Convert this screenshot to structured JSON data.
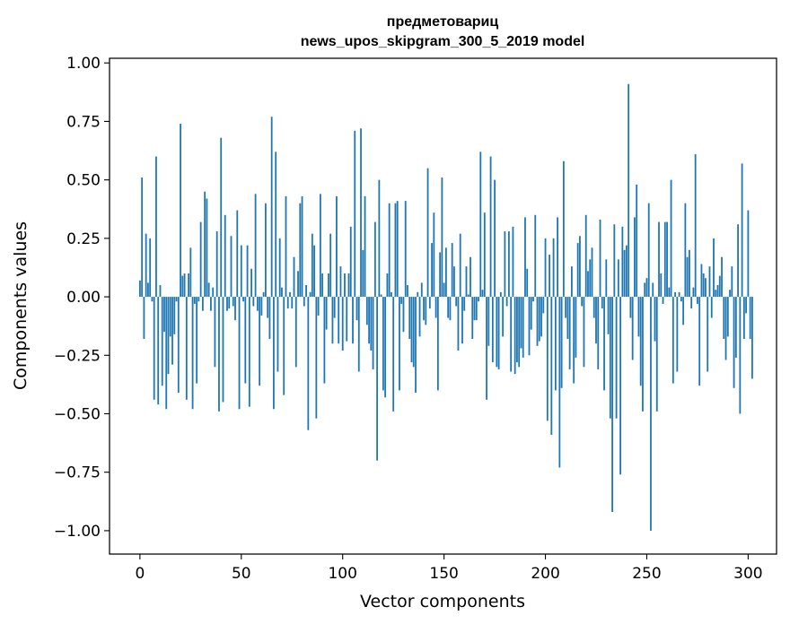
{
  "chart_data": {
    "type": "bar",
    "title_line1": "предметовариц",
    "title_line2": "news_upos_skipgram_300_5_2019 model",
    "xlabel": "Vector components",
    "ylabel": "Components values",
    "xlim": [
      -15,
      314
    ],
    "ylim": [
      -1.1,
      1.02
    ],
    "xticks": [
      0,
      50,
      100,
      150,
      200,
      250,
      300
    ],
    "xtick_labels": [
      "0",
      "50",
      "100",
      "150",
      "200",
      "250",
      "300"
    ],
    "yticks": [
      1.0,
      0.75,
      0.5,
      0.25,
      0.0,
      -0.25,
      -0.5,
      -0.75,
      -1.0
    ],
    "ytick_labels": [
      "1.00",
      "0.75",
      "0.50",
      "0.25",
      "0.00",
      "−0.25",
      "−0.50",
      "−0.75",
      "−1.00"
    ],
    "bar_color": "#1f77b4",
    "grid": false,
    "values": [
      0.07,
      0.51,
      -0.18,
      0.27,
      0.06,
      0.25,
      -0.02,
      -0.44,
      0.6,
      -0.46,
      0.05,
      -0.38,
      -0.15,
      -0.48,
      -0.33,
      -0.17,
      -0.29,
      -0.16,
      -0.02,
      -0.41,
      0.74,
      0.09,
      0.1,
      -0.44,
      0.1,
      0.21,
      -0.48,
      -0.03,
      -0.37,
      -0.02,
      0.32,
      -0.06,
      0.45,
      0.42,
      0.06,
      -0.06,
      0.04,
      -0.3,
      0.28,
      -0.49,
      0.68,
      -0.45,
      0.35,
      -0.06,
      -0.05,
      0.26,
      -0.04,
      -0.1,
      0.37,
      -0.48,
      0.22,
      -0.02,
      -0.37,
      0.22,
      -0.47,
      0.12,
      -0.04,
      0.44,
      -0.06,
      -0.38,
      -0.08,
      0.02,
      0.4,
      -0.09,
      -0.18,
      0.77,
      -0.48,
      0.62,
      -0.32,
      0.25,
      0.04,
      -0.42,
      0.43,
      -0.05,
      0.02,
      -0.05,
      0.17,
      -0.3,
      0.11,
      0.4,
      0.43,
      -0.04,
      0.05,
      -0.57,
      0.02,
      0.27,
      0.22,
      -0.52,
      -0.08,
      0.44,
      0.1,
      -0.37,
      -0.14,
      0.1,
      0.27,
      -0.2,
      -0.09,
      0.43,
      -0.2,
      0.13,
      -0.23,
      0.1,
      -0.19,
      0.1,
      0.3,
      -0.2,
      0.71,
      -0.1,
      -0.32,
      0.72,
      0.2,
      0.43,
      -0.12,
      -0.2,
      -0.23,
      -0.31,
      0.32,
      -0.7,
      0.5,
      0.01,
      -0.4,
      -0.43,
      0.1,
      0.4,
      0.02,
      -0.49,
      0.4,
      0.41,
      -0.4,
      -0.03,
      -0.15,
      0.41,
      0.05,
      -0.18,
      -0.28,
      -0.3,
      -0.41,
      0.02,
      -0.17,
      0.06,
      -0.1,
      -0.12,
      0.55,
      -0.05,
      0.23,
      0.36,
      -0.09,
      -0.4,
      0.19,
      0.51,
      0.06,
      0.21,
      -0.09,
      -0.1,
      0.23,
      0.13,
      -0.04,
      -0.23,
      0.27,
      -0.2,
      -0.06,
      0.13,
      0.01,
      0.17,
      -0.18,
      -0.1,
      -0.1,
      -0.02,
      0.62,
      0.03,
      0.36,
      -0.44,
      -0.21,
      0.6,
      -0.28,
      0.5,
      -0.3,
      -0.31,
      0.02,
      -0.17,
      0.28,
      -0.04,
      0.28,
      -0.32,
      0.3,
      -0.33,
      -0.28,
      -0.3,
      -0.22,
      -0.26,
      0.34,
      0.12,
      -0.25,
      -0.14,
      -0.02,
      0.35,
      -0.21,
      -0.19,
      -0.17,
      -0.07,
      0.25,
      -0.53,
      0.18,
      -0.59,
      0.25,
      -0.4,
      0.34,
      -0.73,
      -0.39,
      0.58,
      -0.09,
      -0.18,
      -0.31,
      0.13,
      -0.37,
      -0.26,
      0.23,
      0.26,
      -0.04,
      -0.3,
      0.35,
      0.11,
      0.16,
      0.21,
      -0.09,
      -0.2,
      -0.31,
      0.33,
      -0.05,
      -0.4,
      0.16,
      -0.16,
      -0.52,
      -0.92,
      0.31,
      -0.52,
      0.16,
      -0.76,
      0.3,
      0.2,
      0.22,
      0.91,
      -0.09,
      -0.27,
      0.34,
      0.48,
      -0.17,
      -0.38,
      -0.49,
      0.06,
      0.08,
      0.4,
      -1.0,
      0.06,
      -0.19,
      -0.49,
      0.32,
      0.1,
      -0.03,
      0.32,
      0.32,
      0.04,
      0.5,
      -0.37,
      0.02,
      -0.32,
      0.02,
      -0.02,
      -0.12,
      0.4,
      0.17,
      0.2,
      -0.05,
      0.04,
      0.61,
      -0.03,
      -0.38,
      0.14,
      0.1,
      0.08,
      -0.32,
      0.13,
      -0.09,
      0.25,
      0.03,
      0.05,
      0.09,
      0.17,
      -0.18,
      -0.27,
      -0.17,
      0.03,
      0.13,
      -0.39,
      -0.26,
      0.31,
      -0.5,
      0.57,
      -0.18,
      -0.07,
      0.37,
      -0.18,
      -0.35
    ]
  }
}
